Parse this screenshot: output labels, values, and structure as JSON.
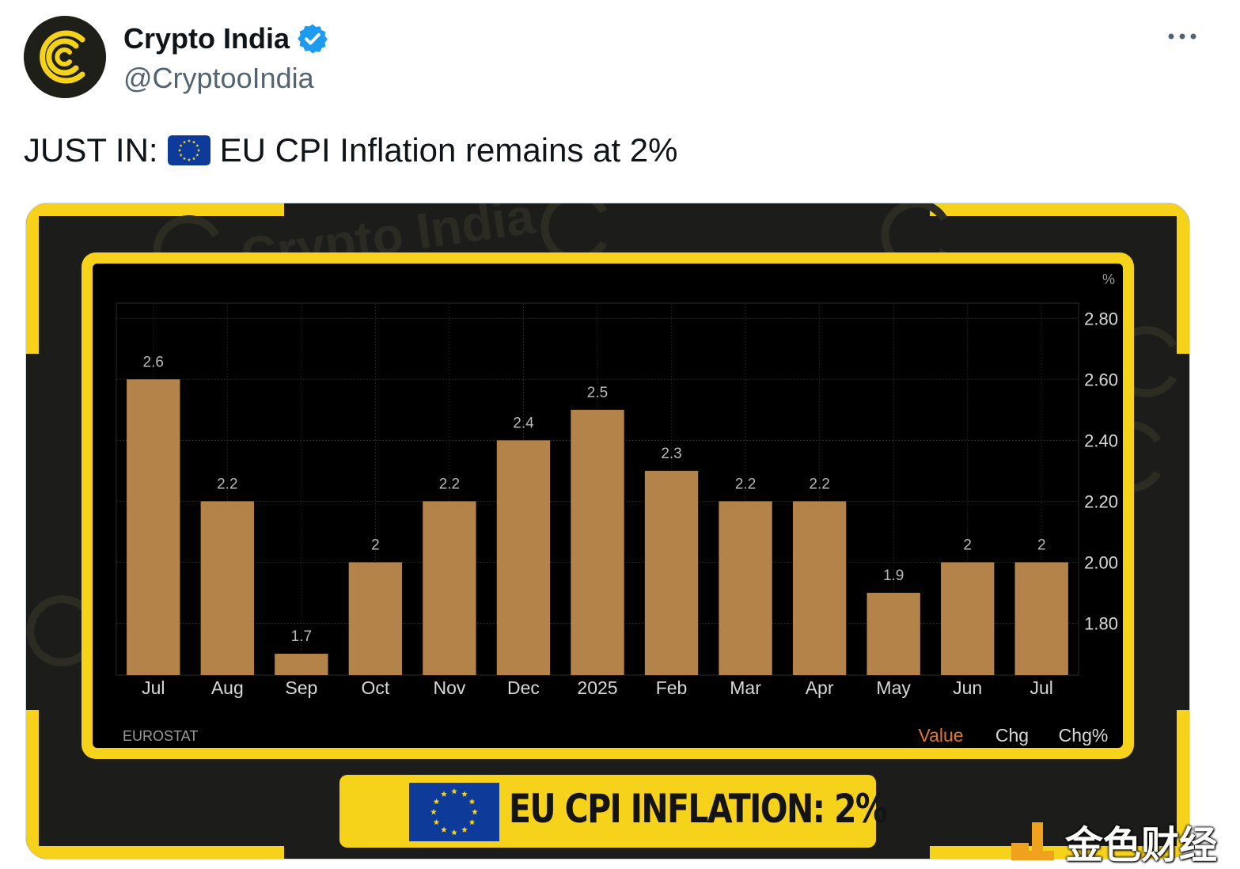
{
  "header": {
    "display_name": "Crypto India",
    "handle": "@CryptooIndia",
    "verified": true,
    "more_label": "More"
  },
  "tweet": {
    "text_prefix": "JUST IN:",
    "flag_emoji": "eu-flag",
    "text_suffix": "EU CPI Inflation remains at 2%"
  },
  "media": {
    "watermark_text": "Crypto India",
    "banner_text": "EU CPI INFLATION: 2%",
    "source_label": "EUROSTAT",
    "legend_tabs": [
      {
        "label": "Value",
        "active": true
      },
      {
        "label": "Chg",
        "active": false
      },
      {
        "label": "Chg%",
        "active": false
      }
    ],
    "corner_watermark": "金色财经",
    "colors": {
      "frame_yellow": "#f7d21b",
      "bar": "#b4834a",
      "active_tab": "#e0782e",
      "background": "#1c1c1a"
    }
  },
  "chart_data": {
    "type": "bar",
    "categories": [
      "Jul",
      "Aug",
      "Sep",
      "Oct",
      "Nov",
      "Dec",
      "2025",
      "Feb",
      "Mar",
      "Apr",
      "May",
      "Jun",
      "Jul"
    ],
    "values": [
      2.6,
      2.2,
      1.7,
      2,
      2.2,
      2.4,
      2.5,
      2.3,
      2.2,
      2.2,
      1.9,
      2,
      2
    ],
    "value_labels": [
      "2.6",
      "2.2",
      "1.7",
      "2",
      "2.2",
      "2.4",
      "2.5",
      "2.3",
      "2.2",
      "2.2",
      "1.9",
      "2",
      "2"
    ],
    "ylabel": "%",
    "yticks": [
      "2.80",
      "2.60",
      "2.40",
      "2.20",
      "2.00",
      "1.80"
    ],
    "ytick_values": [
      2.8,
      2.6,
      2.4,
      2.2,
      2.0,
      1.8
    ],
    "ylim": [
      1.63,
      2.85
    ],
    "grid": true,
    "y_axis_position": "right"
  }
}
